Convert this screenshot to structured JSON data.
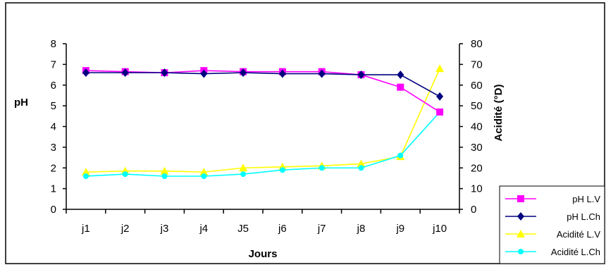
{
  "chart_data": {
    "type": "line",
    "title": "",
    "xlabel": "Jours",
    "ylabel_left": "pH",
    "ylabel_right": "Acidité (°D)",
    "categories": [
      "j1",
      "j2",
      "j3",
      "j4",
      "J5",
      "j6",
      "j7",
      "j8",
      "j9",
      "j10"
    ],
    "ylim_left": [
      0,
      8
    ],
    "yticks_left": [
      "0",
      "1",
      "2",
      "3",
      "4",
      "5",
      "6",
      "7",
      "8"
    ],
    "ylim_right": [
      0,
      80
    ],
    "yticks_right": [
      "0",
      "10",
      "20",
      "30",
      "40",
      "50",
      "60",
      "70",
      "80"
    ],
    "grid": false,
    "legend_position": "bottom-right",
    "series": [
      {
        "name": "pH L.V",
        "axis": "left",
        "color": "#ff00ff",
        "marker": "square",
        "values": [
          6.7,
          6.65,
          6.6,
          6.7,
          6.65,
          6.65,
          6.65,
          6.5,
          5.9,
          4.7
        ]
      },
      {
        "name": "pH L.Ch",
        "axis": "left",
        "color": "#000080",
        "marker": "diamond",
        "values": [
          6.6,
          6.6,
          6.6,
          6.55,
          6.6,
          6.55,
          6.55,
          6.5,
          6.5,
          5.45
        ]
      },
      {
        "name": "Acidité L.V",
        "axis": "right",
        "color": "#ffff00",
        "marker": "triangle",
        "values": [
          18,
          18.5,
          18.5,
          18,
          20,
          20.5,
          21,
          22,
          25.5,
          68
        ]
      },
      {
        "name": "Acidité L.Ch",
        "axis": "right",
        "color": "#00ffff",
        "marker": "circle",
        "values": [
          16,
          17,
          16,
          16,
          17,
          19,
          20,
          20,
          26,
          47
        ]
      }
    ]
  }
}
